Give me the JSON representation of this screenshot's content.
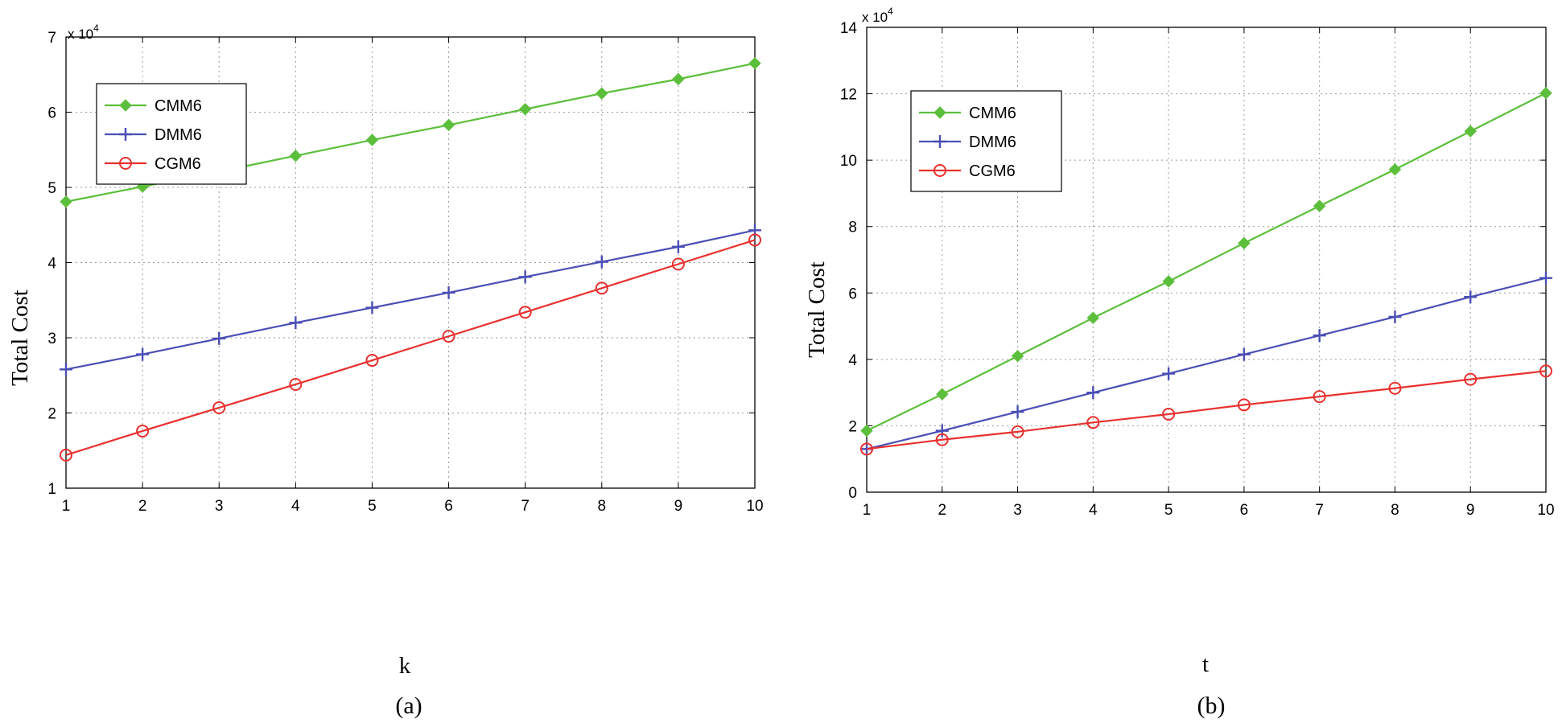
{
  "chart_data": [
    {
      "type": "line",
      "panel_label": "(a)",
      "xlabel": "k",
      "ylabel": "Total Cost",
      "y_multiplier": "x 10",
      "y_exponent": "4",
      "x": [
        1,
        2,
        3,
        4,
        5,
        6,
        7,
        8,
        9,
        10
      ],
      "xlim": [
        1,
        10
      ],
      "ylim": [
        1,
        7
      ],
      "x_ticks": [
        "1",
        "2",
        "3",
        "4",
        "5",
        "6",
        "7",
        "8",
        "9",
        "10"
      ],
      "y_ticks": [
        "1",
        "2",
        "3",
        "4",
        "5",
        "6",
        "7"
      ],
      "grid": true,
      "legend_position": "top-left",
      "series": [
        {
          "name": "CMM6",
          "color": "#5cbf3c",
          "marker": "diamond",
          "values": [
            4.81,
            5.01,
            5.21,
            5.42,
            5.63,
            5.83,
            6.04,
            6.25,
            6.44,
            6.65
          ]
        },
        {
          "name": "DMM6",
          "color": "#4b4fb5",
          "marker": "plus",
          "values": [
            2.58,
            2.78,
            2.99,
            3.2,
            3.4,
            3.6,
            3.81,
            4.01,
            4.21,
            4.43
          ]
        },
        {
          "name": "CGM6",
          "color": "#e8312f",
          "marker": "circle",
          "values": [
            1.44,
            1.76,
            2.07,
            2.38,
            2.7,
            3.02,
            3.34,
            3.66,
            3.98,
            4.3
          ]
        }
      ]
    },
    {
      "type": "line",
      "panel_label": "(b)",
      "xlabel": "t",
      "ylabel": "Total Cost",
      "y_multiplier": "x 10",
      "y_exponent": "4",
      "x": [
        1,
        2,
        3,
        4,
        5,
        6,
        7,
        8,
        9,
        10
      ],
      "xlim": [
        1,
        10
      ],
      "ylim": [
        0,
        14
      ],
      "x_ticks": [
        "1",
        "2",
        "3",
        "4",
        "5",
        "6",
        "7",
        "8",
        "9",
        "10"
      ],
      "y_ticks": [
        "0",
        "2",
        "4",
        "6",
        "8",
        "10",
        "12",
        "14"
      ],
      "grid": true,
      "legend_position": "top-left",
      "series": [
        {
          "name": "CMM6",
          "color": "#5cbf3c",
          "marker": "diamond",
          "values": [
            1.85,
            2.95,
            4.1,
            5.25,
            6.35,
            7.5,
            8.62,
            9.72,
            10.87,
            12.02
          ]
        },
        {
          "name": "DMM6",
          "color": "#4b4fb5",
          "marker": "plus",
          "values": [
            1.3,
            1.85,
            2.42,
            3.0,
            3.57,
            4.15,
            4.72,
            5.28,
            5.88,
            6.45
          ]
        },
        {
          "name": "CGM6",
          "color": "#e8312f",
          "marker": "circle",
          "values": [
            1.3,
            1.58,
            1.82,
            2.1,
            2.35,
            2.63,
            2.88,
            3.13,
            3.4,
            3.65
          ]
        }
      ]
    }
  ]
}
